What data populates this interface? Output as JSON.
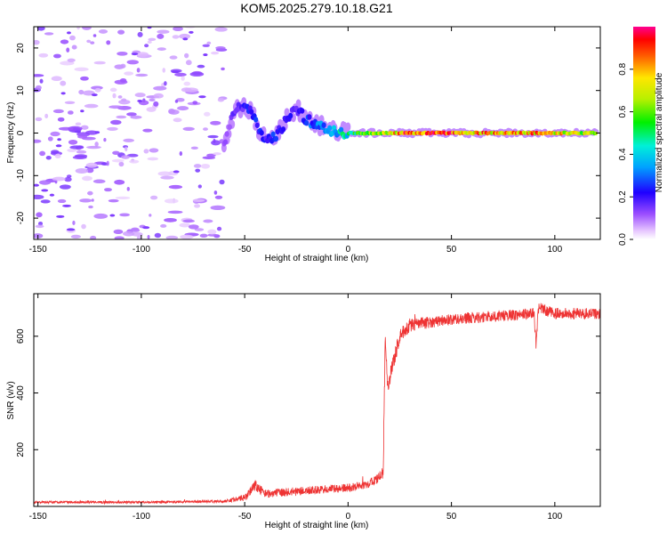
{
  "title": "KOM5.2025.279.10.18.G21",
  "chart_data": [
    {
      "type": "heatmap",
      "xlabel": "Height of straight line (km)",
      "ylabel": "Frequency (Hz)",
      "xlim": [
        -152,
        122
      ],
      "ylim": [
        -25,
        25
      ],
      "xticks": [
        -150,
        -100,
        -50,
        0,
        50,
        100
      ],
      "yticks": [
        -20,
        -10,
        0,
        10,
        20
      ],
      "colorbar": {
        "label": "Normalized spectral amplitude",
        "range": [
          0,
          1
        ],
        "ticks": [
          0.0,
          0.2,
          0.4,
          0.6,
          0.8
        ]
      },
      "series": [
        {
          "name": "noise",
          "note": "scattered low-amplitude patches",
          "x_range": [
            -152,
            -60
          ],
          "y_range": [
            -25,
            25
          ],
          "amplitude": 0.1
        },
        {
          "name": "signal ridge",
          "x": [
            -60,
            -55,
            -50,
            -45,
            -40,
            -35,
            -30,
            -25,
            -20,
            -15,
            -10,
            -5,
            0,
            10,
            20,
            30,
            50,
            70,
            90,
            110,
            120
          ],
          "y": [
            -3,
            5,
            7,
            3,
            -2,
            -1,
            3,
            6,
            3,
            2,
            1,
            0.5,
            0,
            0,
            0,
            0,
            0,
            0,
            0,
            0,
            0
          ],
          "amplitude": [
            0.1,
            0.15,
            0.2,
            0.25,
            0.2,
            0.25,
            0.2,
            0.2,
            0.25,
            0.3,
            0.35,
            0.4,
            0.45,
            0.6,
            0.75,
            0.85,
            0.85,
            0.8,
            0.8,
            0.7,
            0.7
          ]
        }
      ]
    },
    {
      "type": "line",
      "xlabel": "Height of straight line (km)",
      "ylabel": "SNR (v/v)",
      "xlim": [
        -152,
        122
      ],
      "ylim": [
        0,
        750
      ],
      "xticks": [
        -150,
        -100,
        -50,
        0,
        50,
        100
      ],
      "yticks": [
        200,
        400,
        600
      ],
      "series": [
        {
          "name": "SNR",
          "color": "#ee3333",
          "x": [
            -152,
            -100,
            -60,
            -50,
            -45,
            -40,
            -30,
            -20,
            -10,
            0,
            10,
            15,
            17,
            18,
            19,
            20,
            25,
            30,
            40,
            50,
            60,
            70,
            80,
            90,
            91,
            92,
            100,
            110,
            122
          ],
          "y": [
            15,
            15,
            18,
            30,
            75,
            45,
            50,
            55,
            60,
            65,
            80,
            100,
            120,
            620,
            420,
            450,
            600,
            640,
            650,
            660,
            665,
            670,
            675,
            680,
            560,
            700,
            680,
            680,
            680
          ],
          "noise": [
            4,
            4,
            5,
            12,
            20,
            15,
            15,
            15,
            15,
            15,
            15,
            20,
            20,
            30,
            30,
            30,
            25,
            25,
            20,
            20,
            20,
            20,
            20,
            20,
            20,
            20,
            20,
            20,
            20
          ]
        }
      ]
    }
  ]
}
